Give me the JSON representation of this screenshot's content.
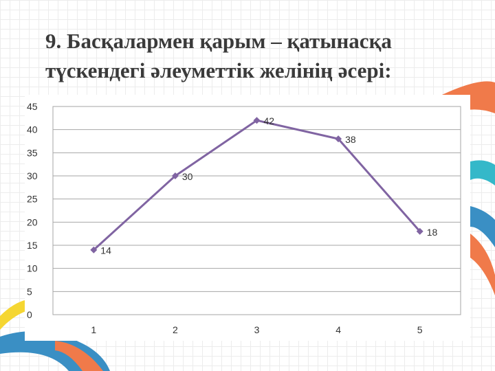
{
  "title_lines": [
    "9. Басқалармен қарым – қатынасқа",
    "түскендегі әлеуметтік желінің әсері:"
  ],
  "colors": {
    "line": "#8064a2",
    "gridline": "#a6a6a6",
    "deco_orange": "#f07a4a",
    "deco_blue": "#3a8fc4",
    "deco_teal": "#34b8c9",
    "deco_yellow": "#f5d632"
  },
  "chart_data": {
    "type": "line",
    "title": "",
    "xlabel": "",
    "ylabel": "",
    "categories": [
      "1",
      "2",
      "3",
      "4",
      "5"
    ],
    "values": [
      14,
      30,
      42,
      38,
      18
    ],
    "data_labels": [
      "14",
      "30",
      "42",
      "38",
      "18"
    ],
    "ylim": [
      0,
      45
    ],
    "yticks": [
      "0",
      "5",
      "10",
      "15",
      "20",
      "25",
      "30",
      "35",
      "40",
      "45"
    ],
    "grid": true,
    "legend": "none",
    "marker": "diamond"
  }
}
